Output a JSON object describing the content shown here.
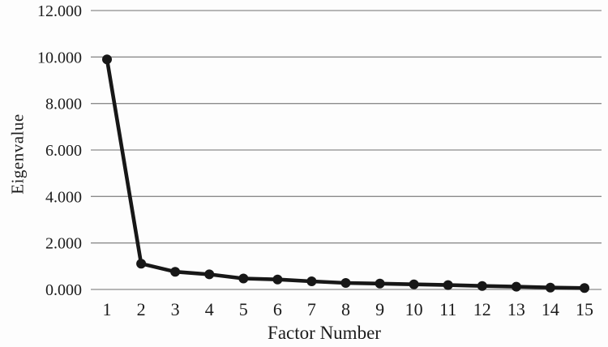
{
  "chart_data": {
    "type": "line",
    "title": "",
    "xlabel": "Factor Number",
    "ylabel": "Eigenvalue",
    "x": [
      1,
      2,
      3,
      4,
      5,
      6,
      7,
      8,
      9,
      10,
      11,
      12,
      13,
      14,
      15
    ],
    "values": [
      9.9,
      1.11,
      0.76,
      0.65,
      0.47,
      0.43,
      0.35,
      0.28,
      0.25,
      0.22,
      0.19,
      0.15,
      0.12,
      0.08,
      0.06
    ],
    "x_tick_labels": [
      "1",
      "2",
      "3",
      "4",
      "5",
      "6",
      "7",
      "8",
      "9",
      "10",
      "11",
      "12",
      "13",
      "14",
      "15"
    ],
    "y_ticks": [
      0,
      2,
      4,
      6,
      8,
      10,
      12
    ],
    "y_tick_labels": [
      "0.000",
      "2.000",
      "4.000",
      "6.000",
      "8.000",
      "10.000",
      "12.000"
    ],
    "ylim": [
      0,
      12
    ],
    "grid": "horizontal-only",
    "legend": "none",
    "marker": "filled-circle",
    "line_color": "#171717",
    "gridline_color": "#8c8c8c",
    "tick_label_color": "#1c1c1c",
    "background": "#fdfdfd"
  }
}
